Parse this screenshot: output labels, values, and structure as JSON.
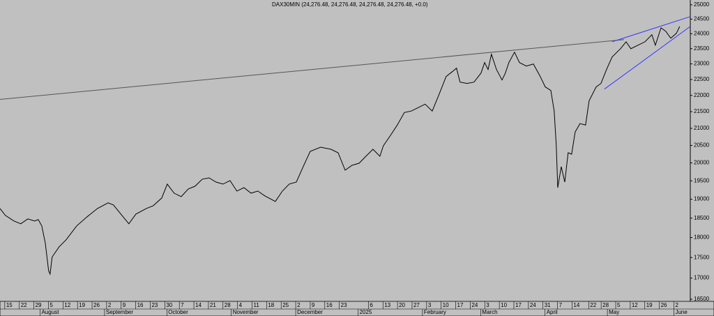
{
  "chart_data": {
    "type": "line",
    "title": "DAX30MIN (24,276.48, 24,276.48, 24,276.48, 24,276.48, +0.0)",
    "log_scale": true,
    "background": "#c0c0c0",
    "ylim": [
      16450,
      25170
    ],
    "yticks": [
      16500,
      17000,
      17500,
      18000,
      18500,
      19000,
      19500,
      20000,
      20500,
      21000,
      21500,
      22000,
      22500,
      23000,
      23500,
      24000,
      24500,
      25000
    ],
    "xlim": [
      -2.3,
      329.9
    ],
    "xticks": [
      {
        "value": 0,
        "label": "15"
      },
      {
        "value": 7,
        "label": "22"
      },
      {
        "value": 14,
        "label": "29"
      },
      {
        "value": 21,
        "label": "5"
      },
      {
        "value": 28,
        "label": "12"
      },
      {
        "value": 35,
        "label": "19"
      },
      {
        "value": 42,
        "label": "26"
      },
      {
        "value": 49,
        "label": "2"
      },
      {
        "value": 56,
        "label": "9"
      },
      {
        "value": 63,
        "label": "16"
      },
      {
        "value": 70,
        "label": "23"
      },
      {
        "value": 77,
        "label": "30"
      },
      {
        "value": 84,
        "label": "7"
      },
      {
        "value": 91,
        "label": "14"
      },
      {
        "value": 98,
        "label": "21"
      },
      {
        "value": 105,
        "label": "28"
      },
      {
        "value": 112,
        "label": "4"
      },
      {
        "value": 119,
        "label": "11"
      },
      {
        "value": 126,
        "label": "18"
      },
      {
        "value": 133,
        "label": "25"
      },
      {
        "value": 140,
        "label": "2"
      },
      {
        "value": 147,
        "label": "9"
      },
      {
        "value": 154,
        "label": "16"
      },
      {
        "value": 161,
        "label": "23"
      },
      {
        "value": 175,
        "label": "6"
      },
      {
        "value": 182,
        "label": "13"
      },
      {
        "value": 189,
        "label": "20"
      },
      {
        "value": 196,
        "label": "27"
      },
      {
        "value": 203,
        "label": "3"
      },
      {
        "value": 210,
        "label": "10"
      },
      {
        "value": 217,
        "label": "17"
      },
      {
        "value": 224,
        "label": "24"
      },
      {
        "value": 231,
        "label": "3"
      },
      {
        "value": 238,
        "label": "10"
      },
      {
        "value": 245,
        "label": "17"
      },
      {
        "value": 252,
        "label": "24"
      },
      {
        "value": 259,
        "label": "31"
      },
      {
        "value": 266,
        "label": "7"
      },
      {
        "value": 273,
        "label": "14"
      },
      {
        "value": 281,
        "label": "22"
      },
      {
        "value": 287,
        "label": "28"
      },
      {
        "value": 294,
        "label": "5"
      },
      {
        "value": 301,
        "label": "12"
      },
      {
        "value": 308,
        "label": "19"
      },
      {
        "value": 315,
        "label": "26"
      },
      {
        "value": 322,
        "label": "2"
      }
    ],
    "month_ticks": [
      {
        "value": 17,
        "label": "August"
      },
      {
        "value": 48,
        "label": "September"
      },
      {
        "value": 78,
        "label": "October"
      },
      {
        "value": 109,
        "label": "November"
      },
      {
        "value": 140,
        "label": "December"
      },
      {
        "value": 170,
        "label": "2025"
      },
      {
        "value": 201,
        "label": "February"
      },
      {
        "value": 229,
        "label": "March"
      },
      {
        "value": 260,
        "label": "April"
      },
      {
        "value": 290,
        "label": "May"
      },
      {
        "value": 322,
        "label": "June"
      }
    ],
    "series": [
      {
        "color": "#000000",
        "x": [
          -2.3,
          0.3,
          4.4,
          7.7,
          11.1,
          14.4,
          16.1,
          17.8,
          19.5,
          21.1,
          21.8,
          22.8,
          26.2,
          29.5,
          34.6,
          39.6,
          44.6,
          49.7,
          52.3,
          56.4,
          59.7,
          63.1,
          68.1,
          71.5,
          75.5,
          78.2,
          81.5,
          84.9,
          88.3,
          91.6,
          95.0,
          98.3,
          101.7,
          105.0,
          108.4,
          111.7,
          115.1,
          118.5,
          121.8,
          125.2,
          130.2,
          133.6,
          136.9,
          140.3,
          143.6,
          147.0,
          152.0,
          157.0,
          160.4,
          163.8,
          167.1,
          170.5,
          173.8,
          177.2,
          180.5,
          182.2,
          185.6,
          188.9,
          192.3,
          195.6,
          199.0,
          202.3,
          205.7,
          209.1,
          212.4,
          215.8,
          217.4,
          219.1,
          222.5,
          225.8,
          229.2,
          230.9,
          232.6,
          234.2,
          236.6,
          239.3,
          240.9,
          242.6,
          245.3,
          247.7,
          251.0,
          254.4,
          257.7,
          260.1,
          262.8,
          264.4,
          265.4,
          266.1,
          267.8,
          269.5,
          271.1,
          272.8,
          274.5,
          276.8,
          279.5,
          281.2,
          284.6,
          286.9,
          289.6,
          292.3,
          296.3,
          299.0,
          301.3,
          304.7,
          308.1,
          311.4,
          313.1,
          315.8,
          318.1,
          320.5,
          323.2,
          324.8
        ],
        "values": [
          18754,
          18571,
          18425,
          18353,
          18481,
          18425,
          18462,
          18299,
          17855,
          17178,
          17096,
          17513,
          17768,
          17942,
          18299,
          18535,
          18754,
          18903,
          18847,
          18571,
          18353,
          18607,
          18754,
          18829,
          19033,
          19410,
          19164,
          19069,
          19277,
          19353,
          19545,
          19582,
          19467,
          19410,
          19506,
          19220,
          19314,
          19164,
          19220,
          19088,
          18940,
          19220,
          19410,
          19467,
          19894,
          20328,
          20448,
          20389,
          20289,
          19795,
          19932,
          19991,
          20188,
          20389,
          20188,
          20488,
          20792,
          21099,
          21475,
          21518,
          21624,
          21730,
          21518,
          22045,
          22593,
          22772,
          22861,
          22416,
          22373,
          22416,
          22704,
          23042,
          22818,
          23315,
          22818,
          22483,
          22704,
          23042,
          23384,
          23042,
          22929,
          22996,
          22593,
          22264,
          22153,
          21518,
          20488,
          19314,
          19894,
          19467,
          20289,
          20248,
          20893,
          21140,
          21099,
          21835,
          22264,
          22373,
          22818,
          23224,
          23498,
          23729,
          23498,
          23614,
          23729,
          23965,
          23614,
          24200,
          24083,
          23848,
          24012,
          24249
        ]
      }
    ],
    "trendlines": [
      {
        "color": "#555555",
        "x": [
          -2.3,
          298
        ],
        "values": [
          21876,
          23800
        ]
      },
      {
        "color": "#3333ff",
        "x": [
          292.3,
          329.9
        ],
        "values": [
          23729,
          24586
        ]
      },
      {
        "color": "#3333ff",
        "x": [
          288.6,
          329.9
        ],
        "values": [
          22197,
          24249
        ]
      }
    ]
  }
}
